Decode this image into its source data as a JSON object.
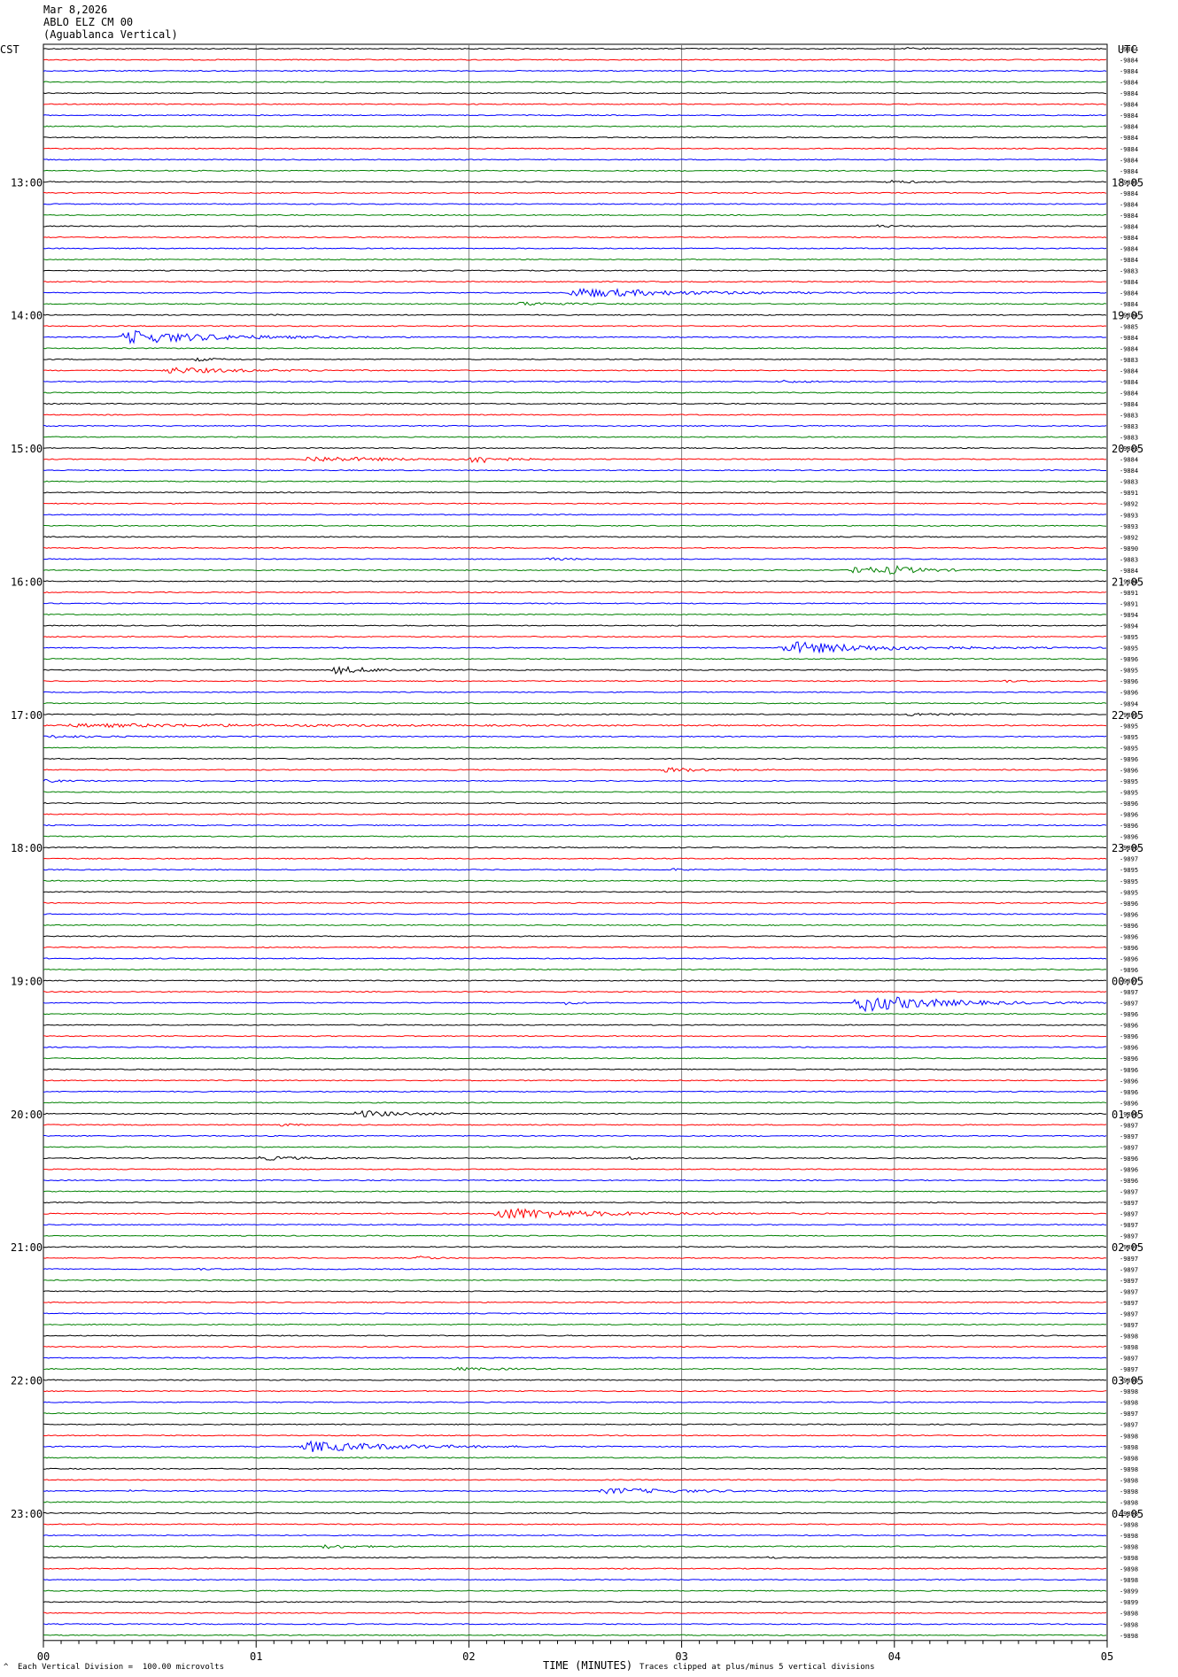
{
  "header": {
    "date": "Mar 8,2026",
    "station": "ABLO ELZ CM 00",
    "location": "(Aguablanca Vertical)"
  },
  "left_axis_label": "CST",
  "right_axis_label": "UTC",
  "footer": {
    "scale_note": "Each Vertical Division =  100.00 microvolts",
    "clip_note": "Traces clipped at plus/minus 5 vertical divisions",
    "corner_mark": "^",
    "x_title": "TIME (MINUTES)"
  },
  "colors": {
    "trace_cycle": [
      "#000000",
      "#ff0000",
      "#0000ff",
      "#008000"
    ],
    "grid": "#808080"
  },
  "chart_data": {
    "type": "line",
    "rows": 144,
    "minutes_per_row": 5,
    "xlim": [
      0,
      5
    ],
    "x_ticks": [
      "00",
      "01",
      "02",
      "03",
      "04",
      "05"
    ],
    "left_hour_labels": [
      {
        "row": 12,
        "label": "13:00"
      },
      {
        "row": 24,
        "label": "14:00"
      },
      {
        "row": 36,
        "label": "15:00"
      },
      {
        "row": 48,
        "label": "16:00"
      },
      {
        "row": 60,
        "label": "17:00"
      },
      {
        "row": 72,
        "label": "18:00"
      },
      {
        "row": 84,
        "label": "19:00"
      },
      {
        "row": 96,
        "label": "20:00"
      },
      {
        "row": 108,
        "label": "21:00"
      },
      {
        "row": 120,
        "label": "22:00"
      },
      {
        "row": 132,
        "label": "23:00"
      }
    ],
    "right_hour_labels": [
      {
        "row": 12,
        "label": "18:05"
      },
      {
        "row": 24,
        "label": "19:05"
      },
      {
        "row": 36,
        "label": "20:05"
      },
      {
        "row": 48,
        "label": "21:05"
      },
      {
        "row": 60,
        "label": "22:05"
      },
      {
        "row": 72,
        "label": "23:05"
      },
      {
        "row": 84,
        "label": "00:05"
      },
      {
        "row": 96,
        "label": "01:05"
      },
      {
        "row": 108,
        "label": "02:05"
      },
      {
        "row": 120,
        "label": "03:05"
      },
      {
        "row": 132,
        "label": "04:05"
      }
    ],
    "row_offsets": [
      "9884",
      "9884",
      "9884",
      "9884",
      "9884",
      "9884",
      "9884",
      "9884",
      "9884",
      "9884",
      "9884",
      "9884",
      "9885",
      "9884",
      "9884",
      "9884",
      "9884",
      "9884",
      "9884",
      "9884",
      "9883",
      "9884",
      "9884",
      "9884",
      "9884",
      "9885",
      "9884",
      "9884",
      "9883",
      "9884",
      "9884",
      "9884",
      "9884",
      "9883",
      "9883",
      "9883",
      "9883",
      "9884",
      "9884",
      "9883",
      "9891",
      "9892",
      "9893",
      "9893",
      "9892",
      "9890",
      "9883",
      "9884",
      "9884",
      "9891",
      "9891",
      "9894",
      "9894",
      "9895",
      "9895",
      "9896",
      "9895",
      "9896",
      "9896",
      "9894",
      "9895",
      "9895",
      "9895",
      "9895",
      "9896",
      "9896",
      "9895",
      "9895",
      "9896",
      "9896",
      "9896",
      "9896",
      "9896",
      "9897",
      "9895",
      "9895",
      "9895",
      "9896",
      "9896",
      "9896",
      "9896",
      "9896",
      "9896",
      "9896",
      "9897",
      "9897",
      "9897",
      "9896",
      "9896",
      "9896",
      "9896",
      "9896",
      "9896",
      "9896",
      "9896",
      "9896",
      "9896",
      "9897",
      "9897",
      "9897",
      "9896",
      "9896",
      "9896",
      "9897",
      "9897",
      "9897",
      "9897",
      "9897",
      "9897",
      "9897",
      "9897",
      "9897",
      "9897",
      "9897",
      "9897",
      "9897",
      "9898",
      "9898",
      "9897",
      "9897",
      "9898",
      "9898",
      "9898",
      "9897",
      "9897",
      "9898",
      "9898",
      "9898",
      "9898",
      "9898",
      "9898",
      "9898",
      "9898",
      "9898",
      "9898",
      "9898",
      "9898",
      "9898",
      "9898",
      "9899",
      "9899",
      "9898",
      "9898",
      "9898"
    ],
    "events": [
      {
        "row": 0,
        "t": 4.05,
        "amp": 1.2,
        "dur": 0.4
      },
      {
        "row": 12,
        "t": 3.95,
        "amp": 2.0,
        "dur": 0.5
      },
      {
        "row": 16,
        "t": 3.9,
        "amp": 1.5,
        "dur": 0.4
      },
      {
        "row": 22,
        "t": 2.45,
        "amp": 6.0,
        "dur": 1.8
      },
      {
        "row": 23,
        "t": 2.2,
        "amp": 2.5,
        "dur": 0.8
      },
      {
        "row": 24,
        "t": 1.05,
        "amp": 2.0,
        "dur": 0.2
      },
      {
        "row": 26,
        "t": 0.35,
        "amp": 9.0,
        "dur": 1.5
      },
      {
        "row": 28,
        "t": 0.7,
        "amp": 2.0,
        "dur": 0.4
      },
      {
        "row": 29,
        "t": 0.55,
        "amp": 4.0,
        "dur": 1.2
      },
      {
        "row": 30,
        "t": 3.45,
        "amp": 1.5,
        "dur": 0.6
      },
      {
        "row": 37,
        "t": 1.2,
        "amp": 3.5,
        "dur": 1.4
      },
      {
        "row": 37,
        "t": 2.0,
        "amp": 7.0,
        "dur": 0.4
      },
      {
        "row": 46,
        "t": 2.35,
        "amp": 1.5,
        "dur": 0.5
      },
      {
        "row": 47,
        "t": 3.8,
        "amp": 10.0,
        "dur": 0.3
      },
      {
        "row": 47,
        "t": 3.95,
        "amp": 5.0,
        "dur": 0.7
      },
      {
        "row": 54,
        "t": 3.45,
        "amp": 8.0,
        "dur": 1.6
      },
      {
        "row": 56,
        "t": 1.35,
        "amp": 5.0,
        "dur": 0.7
      },
      {
        "row": 57,
        "t": 4.5,
        "amp": 1.5,
        "dur": 0.3
      },
      {
        "row": 60,
        "t": 4.05,
        "amp": 2.0,
        "dur": 0.6
      },
      {
        "row": 61,
        "t": 0.0,
        "amp": 2.0,
        "dur": 5.0
      },
      {
        "row": 62,
        "t": 0.0,
        "amp": 1.5,
        "dur": 1.0
      },
      {
        "row": 65,
        "t": 2.9,
        "amp": 3.0,
        "dur": 0.7
      },
      {
        "row": 66,
        "t": 0.0,
        "amp": 2.0,
        "dur": 0.3
      },
      {
        "row": 74,
        "t": 2.95,
        "amp": 1.5,
        "dur": 0.2
      },
      {
        "row": 86,
        "t": 3.8,
        "amp": 12.0,
        "dur": 1.3
      },
      {
        "row": 86,
        "t": 2.45,
        "amp": 2.5,
        "dur": 0.2
      },
      {
        "row": 96,
        "t": 1.45,
        "amp": 4.5,
        "dur": 0.8
      },
      {
        "row": 97,
        "t": 1.1,
        "amp": 1.5,
        "dur": 0.3
      },
      {
        "row": 100,
        "t": 1.0,
        "amp": 2.5,
        "dur": 0.8
      },
      {
        "row": 100,
        "t": 2.75,
        "amp": 1.5,
        "dur": 0.2
      },
      {
        "row": 105,
        "t": 2.1,
        "amp": 8.0,
        "dur": 1.6
      },
      {
        "row": 109,
        "t": 1.75,
        "amp": 2.5,
        "dur": 0.3
      },
      {
        "row": 110,
        "t": 0.7,
        "amp": 1.2,
        "dur": 0.3
      },
      {
        "row": 119,
        "t": 1.9,
        "amp": 1.5,
        "dur": 1.1
      },
      {
        "row": 126,
        "t": 1.2,
        "amp": 7.0,
        "dur": 1.5
      },
      {
        "row": 130,
        "t": 2.6,
        "amp": 3.5,
        "dur": 1.5
      },
      {
        "row": 130,
        "t": 0.4,
        "amp": 1.5,
        "dur": 0.2
      },
      {
        "row": 135,
        "t": 1.3,
        "amp": 2.5,
        "dur": 0.6
      },
      {
        "row": 136,
        "t": 3.4,
        "amp": 3.0,
        "dur": 0.1
      }
    ]
  }
}
